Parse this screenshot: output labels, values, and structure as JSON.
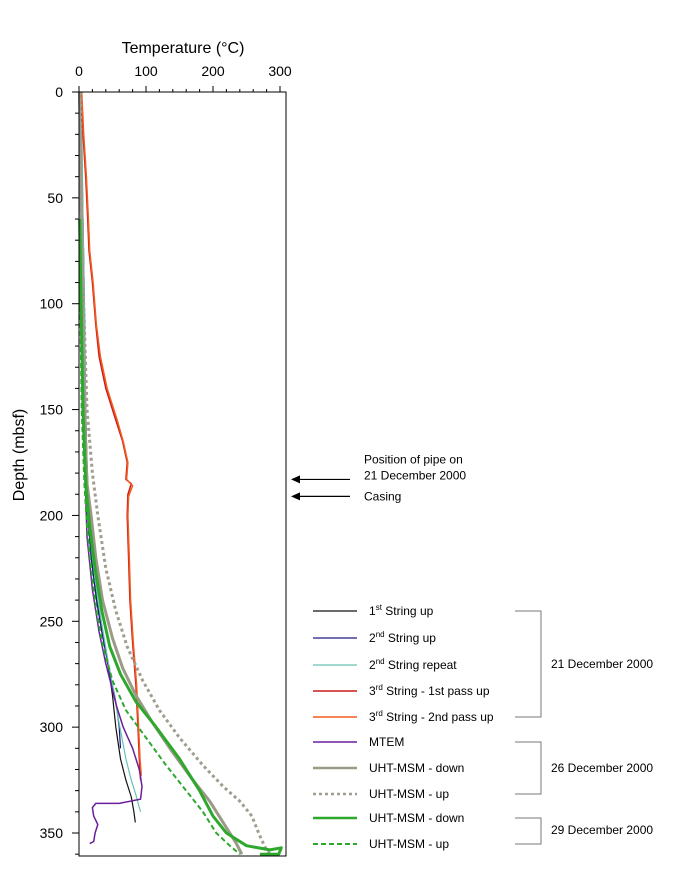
{
  "chart_data": {
    "type": "line",
    "xlabel": "Temperature (°C)",
    "ylabel": "Depth (mbsf)",
    "xlim": [
      0,
      310
    ],
    "ylim": [
      360,
      0
    ],
    "x_axis_position": "top",
    "y_inverted": true,
    "grid": false,
    "legend_position": "lower-right outside",
    "x_ticks": [
      0,
      100,
      200,
      300
    ],
    "y_ticks": [
      0,
      50,
      100,
      150,
      200,
      250,
      300,
      350
    ],
    "series": [
      {
        "name": "1st String up",
        "color": "#111111",
        "dash": "solid",
        "width": 1.2,
        "points": [
          [
            2,
            0
          ],
          [
            4,
            30
          ],
          [
            6,
            60
          ],
          [
            8,
            100
          ],
          [
            10,
            150
          ],
          [
            12,
            175
          ],
          [
            14,
            192
          ],
          [
            16,
            200
          ],
          [
            18,
            215
          ],
          [
            22,
            230
          ],
          [
            30,
            245
          ],
          [
            38,
            260
          ],
          [
            44,
            272
          ],
          [
            50,
            285
          ],
          [
            55,
            300
          ],
          [
            62,
            315
          ],
          [
            70,
            325
          ],
          [
            78,
            333
          ],
          [
            82,
            340
          ],
          [
            84,
            345
          ]
        ]
      },
      {
        "name": "2nd String up",
        "color": "#1a1a80",
        "dash": "solid",
        "width": 1.2,
        "points": [
          [
            2,
            0
          ],
          [
            4,
            30
          ],
          [
            5,
            60
          ],
          [
            7,
            100
          ],
          [
            9,
            150
          ],
          [
            11,
            180
          ],
          [
            13,
            200
          ],
          [
            18,
            220
          ],
          [
            26,
            240
          ],
          [
            34,
            255
          ],
          [
            40,
            265
          ],
          [
            46,
            275
          ],
          [
            52,
            283
          ],
          [
            56,
            290
          ],
          [
            60,
            300
          ],
          [
            62,
            310
          ]
        ]
      },
      {
        "name": "2nd String repeat",
        "color": "#66c2b4",
        "dash": "solid",
        "width": 1.2,
        "points": [
          [
            3,
            0
          ],
          [
            5,
            30
          ],
          [
            6,
            60
          ],
          [
            8,
            100
          ],
          [
            10,
            150
          ],
          [
            12,
            180
          ],
          [
            14,
            200
          ],
          [
            20,
            220
          ],
          [
            28,
            240
          ],
          [
            36,
            255
          ],
          [
            44,
            270
          ],
          [
            52,
            283
          ],
          [
            58,
            295
          ],
          [
            64,
            305
          ],
          [
            70,
            315
          ],
          [
            78,
            325
          ],
          [
            85,
            332
          ],
          [
            90,
            338
          ],
          [
            92,
            340
          ]
        ]
      },
      {
        "name": "3rd String - 1st pass up",
        "color": "#cc1a1a",
        "dash": "solid",
        "width": 1.5,
        "points": [
          [
            3,
            0
          ],
          [
            6,
            20
          ],
          [
            10,
            40
          ],
          [
            13,
            60
          ],
          [
            15,
            75
          ],
          [
            20,
            90
          ],
          [
            25,
            110
          ],
          [
            30,
            125
          ],
          [
            40,
            140
          ],
          [
            55,
            155
          ],
          [
            65,
            165
          ],
          [
            72,
            175
          ],
          [
            70,
            183
          ],
          [
            78,
            185
          ],
          [
            73,
            190
          ],
          [
            72,
            200
          ],
          [
            74,
            220
          ],
          [
            76,
            240
          ],
          [
            80,
            260
          ],
          [
            85,
            280
          ],
          [
            88,
            300
          ],
          [
            90,
            315
          ],
          [
            92,
            325
          ]
        ]
      },
      {
        "name": "3rd String - 2nd pass up",
        "color": "#f25c1f",
        "dash": "solid",
        "width": 1.5,
        "points": [
          [
            4,
            0
          ],
          [
            7,
            20
          ],
          [
            11,
            40
          ],
          [
            14,
            60
          ],
          [
            16,
            75
          ],
          [
            21,
            90
          ],
          [
            26,
            110
          ],
          [
            32,
            125
          ],
          [
            42,
            140
          ],
          [
            57,
            155
          ],
          [
            66,
            165
          ],
          [
            73,
            175
          ],
          [
            71,
            183
          ],
          [
            80,
            186
          ],
          [
            74,
            191
          ],
          [
            73,
            200
          ],
          [
            75,
            220
          ],
          [
            77,
            240
          ],
          [
            81,
            260
          ],
          [
            86,
            280
          ],
          [
            89,
            300
          ],
          [
            91,
            315
          ],
          [
            93,
            323
          ]
        ]
      },
      {
        "name": "MTEM",
        "color": "#6a1f9a",
        "dash": "solid",
        "width": 1.5,
        "points": [
          [
            0,
            0
          ],
          [
            2,
            50
          ],
          [
            5,
            100
          ],
          [
            8,
            150
          ],
          [
            10,
            190
          ],
          [
            12,
            210
          ],
          [
            20,
            235
          ],
          [
            30,
            255
          ],
          [
            40,
            270
          ],
          [
            48,
            280
          ],
          [
            56,
            290
          ],
          [
            66,
            300
          ],
          [
            80,
            310
          ],
          [
            90,
            320
          ],
          [
            94,
            328
          ],
          [
            92,
            334
          ],
          [
            60,
            336
          ],
          [
            25,
            336
          ],
          [
            20,
            338
          ],
          [
            22,
            342
          ],
          [
            28,
            346
          ],
          [
            24,
            350
          ],
          [
            22,
            354
          ],
          [
            16,
            355
          ]
        ]
      },
      {
        "name": "UHT-MSM - down",
        "color": "#9a9a86",
        "dash": "solid",
        "width": 3,
        "points": [
          [
            1,
            0
          ],
          [
            3,
            50
          ],
          [
            5,
            100
          ],
          [
            8,
            150
          ],
          [
            12,
            185
          ],
          [
            18,
            200
          ],
          [
            25,
            220
          ],
          [
            35,
            240
          ],
          [
            50,
            258
          ],
          [
            65,
            272
          ],
          [
            85,
            285
          ],
          [
            110,
            298
          ],
          [
            140,
            312
          ],
          [
            170,
            325
          ],
          [
            195,
            335
          ],
          [
            215,
            345
          ],
          [
            235,
            355
          ],
          [
            243,
            360
          ]
        ]
      },
      {
        "name": "UHT-MSM - up",
        "color": "#a09c8e",
        "dash": "dot",
        "width": 3,
        "points": [
          [
            2,
            0
          ],
          [
            4,
            50
          ],
          [
            7,
            100
          ],
          [
            12,
            150
          ],
          [
            20,
            180
          ],
          [
            28,
            200
          ],
          [
            40,
            225
          ],
          [
            55,
            245
          ],
          [
            72,
            262
          ],
          [
            95,
            278
          ],
          [
            120,
            292
          ],
          [
            150,
            305
          ],
          [
            185,
            318
          ],
          [
            215,
            328
          ],
          [
            240,
            335
          ],
          [
            258,
            342
          ],
          [
            268,
            350
          ],
          [
            278,
            357
          ],
          [
            285,
            360
          ]
        ]
      },
      {
        "name": "UHT-MSM - down",
        "color": "#2da82d",
        "dash": "solid",
        "width": 3,
        "points": [
          [
            1,
            60
          ],
          [
            3,
            100
          ],
          [
            6,
            150
          ],
          [
            10,
            185
          ],
          [
            16,
            205
          ],
          [
            24,
            225
          ],
          [
            34,
            245
          ],
          [
            46,
            262
          ],
          [
            62,
            275
          ],
          [
            85,
            288
          ],
          [
            115,
            300
          ],
          [
            150,
            315
          ],
          [
            180,
            330
          ],
          [
            200,
            342
          ],
          [
            220,
            350
          ],
          [
            250,
            356
          ],
          [
            285,
            358
          ],
          [
            302,
            357
          ],
          [
            298,
            360
          ],
          [
            270,
            360
          ]
        ]
      },
      {
        "name": "UHT-MSM - up",
        "color": "#2da82d",
        "dash": "dash",
        "width": 2,
        "points": [
          [
            1,
            60
          ],
          [
            2,
            100
          ],
          [
            4,
            150
          ],
          [
            8,
            185
          ],
          [
            12,
            205
          ],
          [
            18,
            225
          ],
          [
            26,
            245
          ],
          [
            36,
            262
          ],
          [
            50,
            278
          ],
          [
            70,
            292
          ],
          [
            100,
            305
          ],
          [
            130,
            318
          ],
          [
            160,
            330
          ],
          [
            185,
            340
          ],
          [
            205,
            350
          ],
          [
            225,
            356
          ],
          [
            240,
            360
          ]
        ]
      }
    ],
    "legend_groups": [
      {
        "label": "21 December 2000",
        "items": [
          0,
          1,
          2,
          3,
          4
        ]
      },
      {
        "label": "26 December  2000",
        "items": [
          5,
          6,
          7
        ]
      },
      {
        "label": "29 December  2000",
        "items": [
          8,
          9
        ]
      }
    ],
    "annotations": [
      {
        "text_lines": [
          "Position of pipe on",
          "21 December 2000"
        ],
        "depth": 183
      },
      {
        "text_lines": [
          "Casing"
        ],
        "depth": 191
      }
    ]
  }
}
